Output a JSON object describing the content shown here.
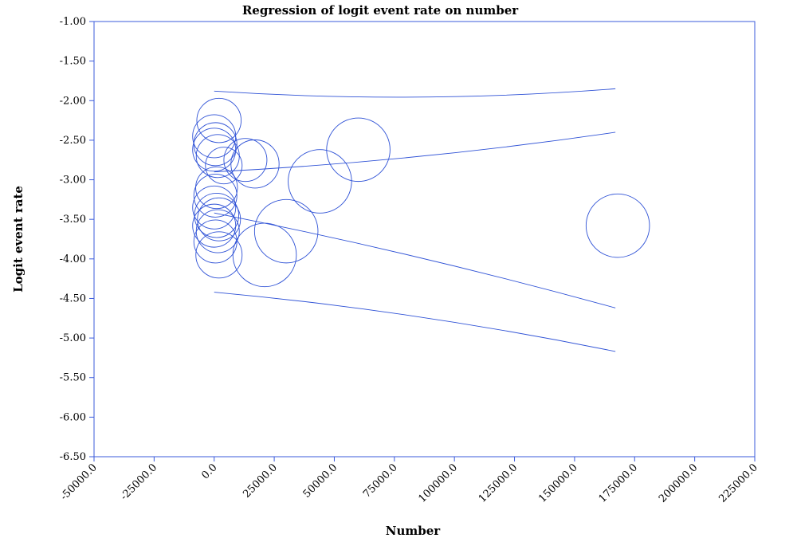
{
  "chart_data": {
    "type": "scatter",
    "title": "Regression of logit event rate on number",
    "xlabel": "Number",
    "ylabel": "Logit event rate",
    "xlim": [
      -50000,
      225000
    ],
    "ylim": [
      -6.5,
      -1.0
    ],
    "x_ticks": [
      -50000,
      -25000,
      0,
      25000,
      50000,
      75000,
      100000,
      125000,
      150000,
      175000,
      200000,
      225000
    ],
    "x_tick_labels": [
      "-50000.0",
      "-25000.0",
      "0.0",
      "25000.0",
      "50000.0",
      "75000.0",
      "100000.0",
      "125000.0",
      "150000.0",
      "175000.0",
      "200000.0",
      "225000.0"
    ],
    "y_ticks": [
      -1.0,
      -1.5,
      -2.0,
      -2.5,
      -3.0,
      -3.5,
      -4.0,
      -4.5,
      -5.0,
      -5.5,
      -6.0,
      -6.5
    ],
    "y_tick_labels": [
      "-1.00",
      "-1.50",
      "-2.00",
      "-2.50",
      "-3.00",
      "-3.50",
      "-4.00",
      "-4.50",
      "-5.00",
      "-5.50",
      "-6.00",
      "-6.50"
    ],
    "grid": false,
    "points": [
      {
        "x": 2000,
        "y": -2.25,
        "size": 0.52
      },
      {
        "x": 0,
        "y": -2.45,
        "size": 0.5
      },
      {
        "x": 500,
        "y": -2.55,
        "size": 0.5
      },
      {
        "x": 0,
        "y": -2.62,
        "size": 0.5
      },
      {
        "x": 1500,
        "y": -2.7,
        "size": 0.5
      },
      {
        "x": 4000,
        "y": -2.82,
        "size": 0.4
      },
      {
        "x": 17000,
        "y": -2.8,
        "size": 0.58
      },
      {
        "x": 13000,
        "y": -2.75,
        "size": 0.5
      },
      {
        "x": 60000,
        "y": -2.62,
        "size": 0.82
      },
      {
        "x": 44000,
        "y": -3.02,
        "size": 0.82
      },
      {
        "x": 1000,
        "y": -3.1,
        "size": 0.48
      },
      {
        "x": 500,
        "y": -3.2,
        "size": 0.5
      },
      {
        "x": 0,
        "y": -3.35,
        "size": 0.5
      },
      {
        "x": 1000,
        "y": -3.45,
        "size": 0.52
      },
      {
        "x": 2000,
        "y": -3.5,
        "size": 0.5
      },
      {
        "x": 0,
        "y": -3.58,
        "size": 0.5
      },
      {
        "x": 1500,
        "y": -3.65,
        "size": 0.5
      },
      {
        "x": 500,
        "y": -3.78,
        "size": 0.5
      },
      {
        "x": 2000,
        "y": -3.95,
        "size": 0.55
      },
      {
        "x": 30000,
        "y": -3.65,
        "size": 0.82
      },
      {
        "x": 21000,
        "y": -3.95,
        "size": 0.82
      },
      {
        "x": 168000,
        "y": -3.58,
        "size": 0.82
      }
    ],
    "regression_line": {
      "x": [
        0,
        167000
      ],
      "y": [
        -3.42,
        -4.62
      ]
    },
    "confidence_upper": {
      "x": [
        0,
        167000
      ],
      "y": [
        -2.9,
        -2.4
      ]
    },
    "confidence_lower": {
      "x": [
        0,
        167000
      ],
      "y": [
        -3.42,
        -4.62
      ]
    },
    "prediction_upper": {
      "x": [
        0,
        167000
      ],
      "y": [
        -1.88,
        -1.85
      ]
    },
    "prediction_lower": {
      "x": [
        0,
        167000
      ],
      "y": [
        -4.42,
        -5.17
      ]
    },
    "color": "#2f52d6"
  }
}
